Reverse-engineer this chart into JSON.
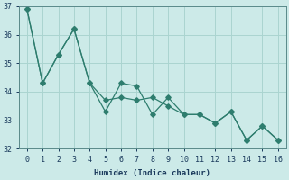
{
  "x": [
    0,
    1,
    2,
    3,
    4,
    5,
    6,
    7,
    8,
    9,
    10,
    11,
    12,
    13,
    14,
    15,
    16
  ],
  "y_zigzag": [
    36.9,
    34.3,
    35.3,
    36.2,
    34.3,
    33.3,
    34.3,
    34.2,
    33.2,
    33.8,
    33.2,
    33.2,
    32.9,
    33.3,
    32.3,
    32.8,
    32.3
  ],
  "y_trend": [
    36.9,
    34.3,
    35.3,
    36.2,
    34.3,
    33.7,
    33.8,
    33.7,
    33.8,
    33.5,
    33.2,
    33.2,
    32.9,
    33.3,
    32.3,
    32.8,
    32.3
  ],
  "line_color": "#2e7d6e",
  "bg_color": "#cceae8",
  "grid_color": "#aad4d0",
  "xlabel": "Humidex (Indice chaleur)",
  "ylim": [
    32,
    37
  ],
  "xlim": [
    -0.5,
    16.5
  ],
  "yticks": [
    32,
    33,
    34,
    35,
    36,
    37
  ],
  "xticks": [
    0,
    1,
    2,
    3,
    4,
    5,
    6,
    7,
    8,
    9,
    10,
    11,
    12,
    13,
    14,
    15,
    16
  ]
}
